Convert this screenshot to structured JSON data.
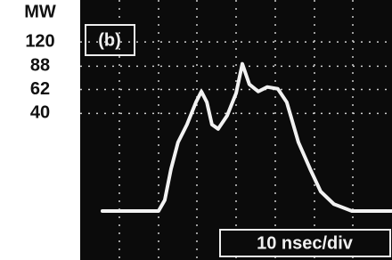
{
  "chart_data": {
    "type": "line",
    "y_label": "MW",
    "annotations": [
      "(b)",
      "10 nsec/div"
    ],
    "y_scale": "sqrt",
    "ylim": [
      0,
      187
    ],
    "yticks": [
      40,
      62,
      88,
      120
    ],
    "xlim": [
      0,
      80
    ],
    "grid": true,
    "color": "#f2f2f2",
    "x": [
      5.7,
      9.1,
      13.7,
      17.1,
      20.1,
      21.7,
      23.3,
      25.1,
      27.4,
      29.7,
      31.1,
      32.5,
      33.8,
      35.4,
      37.7,
      40.0,
      41.6,
      43.4,
      45.7,
      48.0,
      50.7,
      53.0,
      56.0,
      59.0,
      61.7,
      65.1,
      69.7,
      75.4,
      80.0
    ],
    "values": [
      0,
      0,
      0,
      0,
      0,
      0.5,
      7.4,
      19.8,
      31.4,
      49.7,
      60,
      49.7,
      31.4,
      28.3,
      38.2,
      58.2,
      91,
      67.4,
      60,
      64.6,
      62.7,
      49.7,
      19.8,
      7.4,
      1.6,
      0.2,
      0,
      0,
      0
    ]
  }
}
